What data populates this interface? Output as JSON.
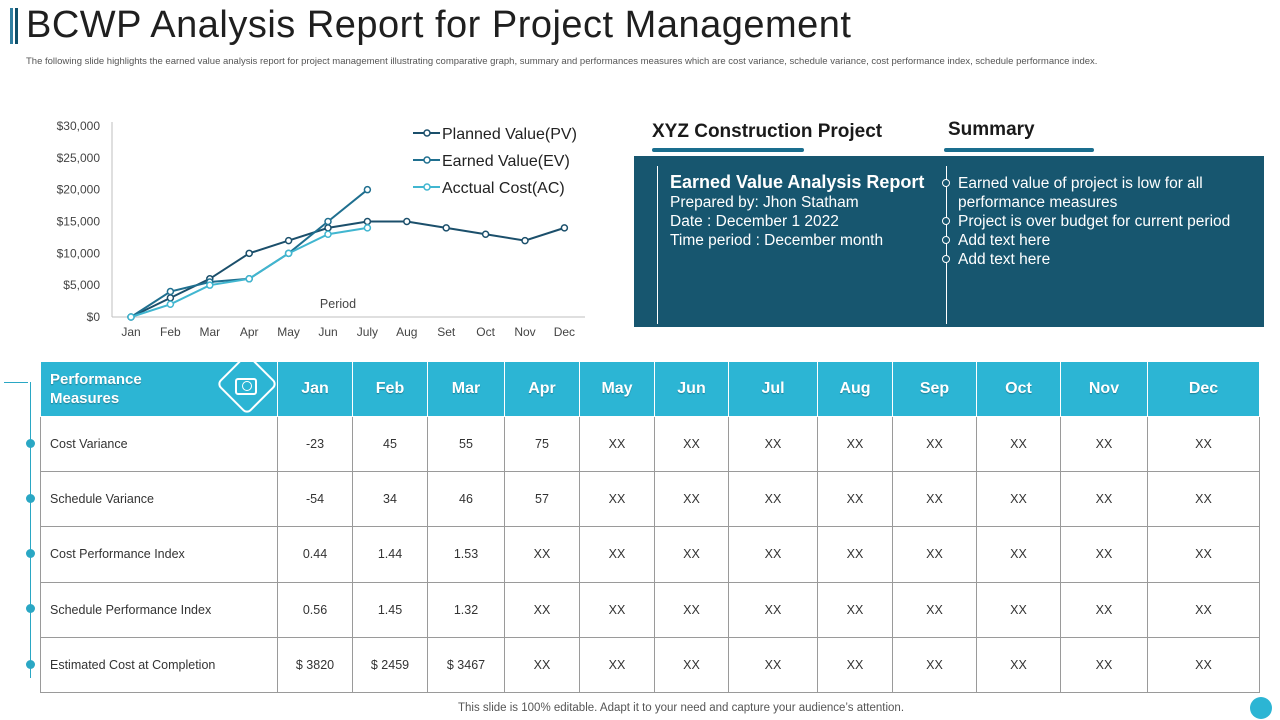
{
  "header": {
    "title": "BCWP Analysis Report for Project Management",
    "subtitle": "The following slide highlights the earned value analysis report for project management illustrating comparative graph, summary and performances measures which are cost variance, schedule variance, cost performance index, schedule performance index."
  },
  "chart_data": {
    "type": "line",
    "categories": [
      "Jan",
      "Feb",
      "Mar",
      "Apr",
      "May",
      "Jun",
      "July",
      "Aug",
      "Set",
      "Oct",
      "Nov",
      "Dec"
    ],
    "xlabel": "Period",
    "ylabel": "",
    "ylim": [
      0,
      30000
    ],
    "y_ticks": [
      "$0",
      "$5,000",
      "$10,000",
      "$15,000",
      "$20,000",
      "$25,000",
      "$30,000"
    ],
    "grid": false,
    "legend": "top-right",
    "series": [
      {
        "name": "Planned Value(PV)",
        "color": "#1b4f6b",
        "values": [
          0,
          3000,
          6000,
          10000,
          12000,
          14000,
          15000,
          15000,
          14000,
          13000,
          12000,
          14000
        ]
      },
      {
        "name": "Earned Value(EV)",
        "color": "#1f6f8f",
        "values": [
          0,
          4000,
          5500,
          6000,
          10000,
          15000,
          20000,
          null,
          null,
          null,
          null,
          null
        ]
      },
      {
        "name": "Acctual Cost(AC)",
        "color": "#41b6d0",
        "values": [
          0,
          2000,
          5000,
          6000,
          10000,
          13000,
          14000,
          null,
          null,
          null,
          null,
          null
        ]
      }
    ]
  },
  "project": {
    "heading": "XYZ Construction Project",
    "report_title": "Earned Value Analysis Report",
    "prepared_by": "Prepared by: Jhon Statham",
    "date": "Date : December 1 2022",
    "time_period": "Time period : December month"
  },
  "summary": {
    "heading": "Summary",
    "items": [
      "Earned value of project is low for all",
      "performance measures",
      "Project is over budget for current period",
      "Add text here",
      "Add text here"
    ]
  },
  "table": {
    "header_line1": "Performance",
    "header_line2": "Measures",
    "months": [
      "Jan",
      "Feb",
      "Mar",
      "Apr",
      "May",
      "Jun",
      "Jul",
      "Aug",
      "Sep",
      "Oct",
      "Nov",
      "Dec"
    ],
    "rows": [
      {
        "label": "Cost Variance",
        "cells": [
          "-23",
          "45",
          "55",
          "75",
          "XX",
          "XX",
          "XX",
          "XX",
          "XX",
          "XX",
          "XX",
          "XX"
        ]
      },
      {
        "label": "Schedule Variance",
        "cells": [
          "-54",
          "34",
          "46",
          "57",
          "XX",
          "XX",
          "XX",
          "XX",
          "XX",
          "XX",
          "XX",
          "XX"
        ]
      },
      {
        "label": "Cost Performance  Index",
        "cells": [
          "0.44",
          "1.44",
          "1.53",
          "XX",
          "XX",
          "XX",
          "XX",
          "XX",
          "XX",
          "XX",
          "XX",
          "XX"
        ]
      },
      {
        "label": "Schedule Performance Index",
        "cells": [
          "0.56",
          "1.45",
          "1.32",
          "XX",
          "XX",
          "XX",
          "XX",
          "XX",
          "XX",
          "XX",
          "XX",
          "XX"
        ]
      },
      {
        "label": "Estimated Cost at Completion",
        "cells": [
          "$ 3820",
          "$ 2459",
          "$ 3467",
          "XX",
          "XX",
          "XX",
          "XX",
          "XX",
          "XX",
          "XX",
          "XX",
          "XX"
        ]
      }
    ]
  },
  "footer": "This slide is 100% editable. Adapt it to your need and capture your audience’s attention.",
  "colors": {
    "accent": "#2cb5d4",
    "panel": "#17566f",
    "pv": "#1b4f6b",
    "ev": "#1f6f8f",
    "ac": "#41b6d0"
  }
}
